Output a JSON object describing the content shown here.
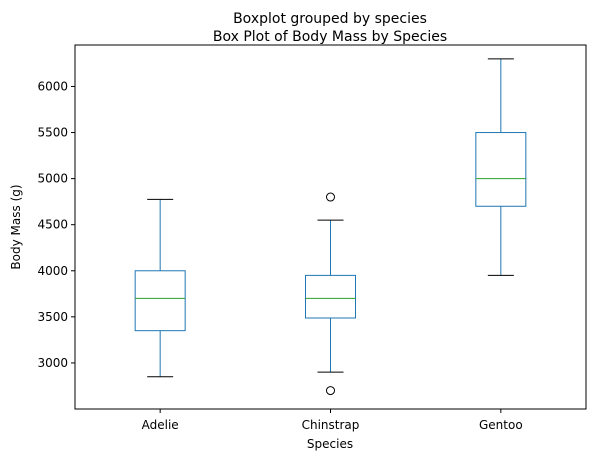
{
  "chart_data": {
    "type": "box",
    "suptitle": "Boxplot grouped by species",
    "title": "Box Plot of Body Mass by Species",
    "xlabel": "Species",
    "ylabel": "Body Mass (g)",
    "ylim": [
      2500,
      6450
    ],
    "yticks": [
      3000,
      3500,
      4000,
      4500,
      5000,
      5500,
      6000
    ],
    "grid": false,
    "categories": [
      "Adelie",
      "Chinstrap",
      "Gentoo"
    ],
    "boxes": [
      {
        "category": "Adelie",
        "whisker_low": 2850,
        "q1": 3350,
        "median": 3700,
        "q3": 4000,
        "whisker_high": 4775,
        "outliers": []
      },
      {
        "category": "Chinstrap",
        "whisker_low": 2900,
        "q1": 3487.5,
        "median": 3700,
        "q3": 3950,
        "whisker_high": 4550,
        "outliers": [
          2700,
          4800
        ]
      },
      {
        "category": "Gentoo",
        "whisker_low": 3950,
        "q1": 4700,
        "median": 5000,
        "q3": 5500,
        "whisker_high": 6300,
        "outliers": []
      }
    ],
    "colors": {
      "box": "#1f77b4",
      "median": "#2ca02c",
      "whisker": "#1f77b4",
      "cap": "#000000",
      "flier": "#000000"
    }
  }
}
